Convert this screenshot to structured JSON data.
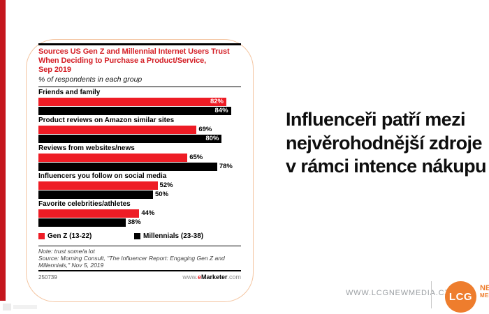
{
  "slide": {
    "headline": "Influenceři patří mezi\nnejvěrohodnější zdroje\nv rámci intence nákupu",
    "accent_color": "#c5161d"
  },
  "footer": {
    "website": "WWW.LCGNEWMEDIA.CZ",
    "logo_text": "LCG",
    "logo_brand_line1": "NEW",
    "logo_brand_line2": "MEDIA",
    "logo_color": "#ee7d2d"
  },
  "chart_data": {
    "type": "bar",
    "orientation": "horizontal",
    "title": "Sources US Gen Z and Millennial Internet Users Trust\nWhen Deciding to Purchase a Product/Service,\nSep 2019",
    "subtitle": "% of respondents in each group",
    "categories": [
      "Friends and family",
      "Product reviews on Amazon similar sites",
      "Reviews from websites/news",
      "Influencers you follow on social media",
      "Favorite celebrities/athletes"
    ],
    "series": [
      {
        "name": "Gen Z (13-22)",
        "color": "#ee1c25",
        "values": [
          82,
          69,
          65,
          52,
          44
        ]
      },
      {
        "name": "Millennials (23-38)",
        "color": "#000000",
        "values": [
          84,
          80,
          78,
          50,
          38
        ]
      }
    ],
    "value_suffix": "%",
    "xlim": [
      0,
      100
    ],
    "inside_label_threshold": 80,
    "legend_position": "bottom",
    "grid": false,
    "note": "Note: trust some/a lot",
    "source": "Source: Morning Consult, \"The Influencer Report: Engaging Gen Z and Millennials,\" Nov 5, 2019",
    "chart_id": "250739",
    "brand_prefix": "www.",
    "brand_e": "e",
    "brand_name": "Marketer",
    "brand_suffix": ".com",
    "title_color": "#d41f26"
  }
}
